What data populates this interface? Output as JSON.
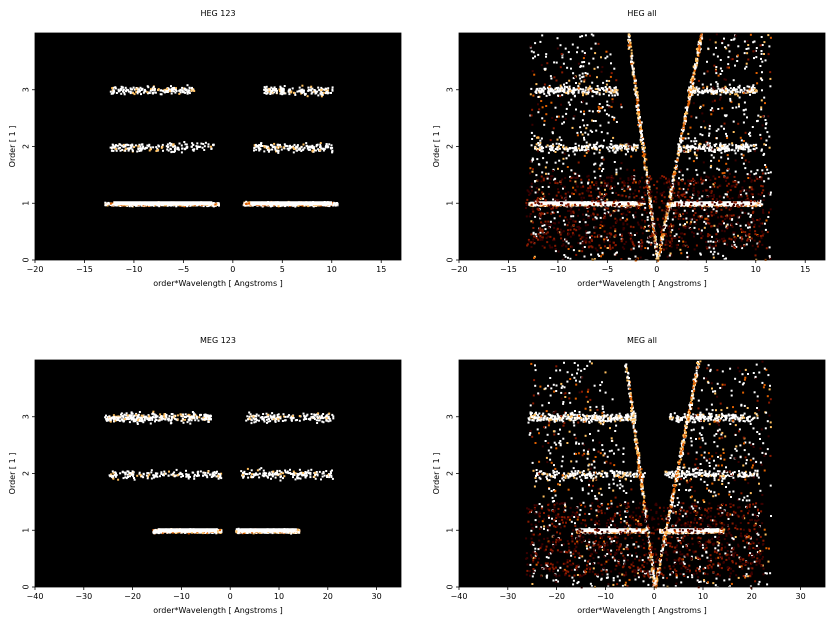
{
  "chart_data": [
    {
      "type": "heatmap",
      "title": "HEG 123",
      "xlabel": "order*Wavelength [ Angstroms ]",
      "ylabel": "Order [ 1 ]",
      "xlim": [
        -20,
        17
      ],
      "ylim": [
        0,
        4
      ],
      "xticks": [
        "−20",
        "−15",
        "−10",
        "−5",
        "0",
        "5",
        "10",
        "15"
      ],
      "yticks": [
        "0",
        "1",
        "2",
        "3"
      ],
      "background": "#000000",
      "colormap": [
        "#3a0000",
        "#8b1a00",
        "#e06000",
        "#ffc060",
        "#ffffff"
      ],
      "features": [
        {
          "order": 1,
          "x_range": [
            -13,
            -1.5
          ],
          "intensity": "high"
        },
        {
          "order": 1,
          "x_range": [
            1,
            10.5
          ],
          "intensity": "high"
        },
        {
          "order": 2,
          "x_range": [
            -12.5,
            -2
          ],
          "intensity": "low"
        },
        {
          "order": 2,
          "x_range": [
            2,
            10
          ],
          "intensity": "low"
        },
        {
          "order": 3,
          "x_range": [
            -12.5,
            -4
          ],
          "intensity": "low"
        },
        {
          "order": 3,
          "x_range": [
            3,
            10
          ],
          "intensity": "low"
        }
      ]
    },
    {
      "type": "heatmap",
      "title": "HEG all",
      "xlabel": "order*Wavelength [ Angstroms ]",
      "ylabel": "Order [ 1 ]",
      "xlim": [
        -20,
        17
      ],
      "ylim": [
        0,
        4
      ],
      "xticks": [
        "−20",
        "−15",
        "−10",
        "−5",
        "0",
        "5",
        "10",
        "15"
      ],
      "yticks": [
        "0",
        "1",
        "2",
        "3"
      ],
      "background": "#000000",
      "colormap": [
        "#3a0000",
        "#8b1a00",
        "#e06000",
        "#ffc060",
        "#ffffff"
      ],
      "features": [
        {
          "order": 1,
          "x_range": [
            -13,
            -1.5
          ],
          "intensity": "high"
        },
        {
          "order": 1,
          "x_range": [
            1,
            10.5
          ],
          "intensity": "high"
        },
        {
          "order": 2,
          "x_range": [
            -12.5,
            -2
          ],
          "intensity": "low"
        },
        {
          "order": 2,
          "x_range": [
            2,
            10
          ],
          "intensity": "low"
        },
        {
          "order": 3,
          "x_range": [
            -12.5,
            -4
          ],
          "intensity": "low"
        },
        {
          "order": 3,
          "x_range": [
            3,
            10
          ],
          "intensity": "low"
        }
      ],
      "background_scatter": true
    },
    {
      "type": "heatmap",
      "title": "MEG 123",
      "xlabel": "order*Wavelength [ Angstroms ]",
      "ylabel": "Order [ 1 ]",
      "xlim": [
        -40,
        35
      ],
      "ylim": [
        0,
        4
      ],
      "xticks": [
        "−40",
        "−30",
        "−20",
        "−10",
        "0",
        "10",
        "20",
        "30"
      ],
      "yticks": [
        "0",
        "1",
        "2",
        "3"
      ],
      "background": "#000000",
      "colormap": [
        "#3a0000",
        "#8b1a00",
        "#e06000",
        "#ffc060",
        "#ffffff"
      ],
      "features": [
        {
          "order": 1,
          "x_range": [
            -16,
            -2
          ],
          "intensity": "high"
        },
        {
          "order": 1,
          "x_range": [
            1,
            14
          ],
          "intensity": "high"
        },
        {
          "order": 2,
          "x_range": [
            -25,
            -2
          ],
          "intensity": "low"
        },
        {
          "order": 2,
          "x_range": [
            2,
            21
          ],
          "intensity": "low"
        },
        {
          "order": 3,
          "x_range": [
            -26,
            -4
          ],
          "intensity": "medium"
        },
        {
          "order": 3,
          "x_range": [
            3,
            21
          ],
          "intensity": "low"
        }
      ]
    },
    {
      "type": "heatmap",
      "title": "MEG all",
      "xlabel": "order*Wavelength [ Angstroms ]",
      "ylabel": "Order [ 1 ]",
      "xlim": [
        -40,
        35
      ],
      "ylim": [
        0,
        4
      ],
      "xticks": [
        "−40",
        "−30",
        "−20",
        "−10",
        "0",
        "10",
        "20",
        "30"
      ],
      "yticks": [
        "0",
        "1",
        "2",
        "3"
      ],
      "background": "#000000",
      "colormap": [
        "#3a0000",
        "#8b1a00",
        "#e06000",
        "#ffc060",
        "#ffffff"
      ],
      "features": [
        {
          "order": 1,
          "x_range": [
            -16,
            -2
          ],
          "intensity": "high"
        },
        {
          "order": 1,
          "x_range": [
            1,
            14
          ],
          "intensity": "high"
        },
        {
          "order": 2,
          "x_range": [
            -25,
            -2
          ],
          "intensity": "low"
        },
        {
          "order": 2,
          "x_range": [
            2,
            21
          ],
          "intensity": "low"
        },
        {
          "order": 3,
          "x_range": [
            -26,
            -4
          ],
          "intensity": "medium"
        },
        {
          "order": 3,
          "x_range": [
            3,
            21
          ],
          "intensity": "low"
        }
      ],
      "background_scatter": true
    }
  ]
}
